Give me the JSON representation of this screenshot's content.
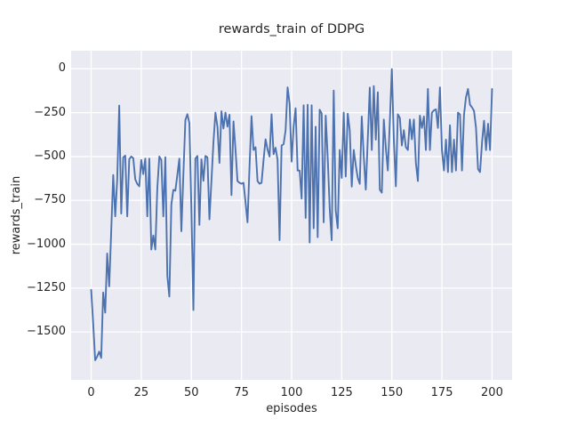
{
  "figure": {
    "title": "rewards_train of DDPG",
    "xlabel": "episodes",
    "ylabel": "rewards_train"
  },
  "chart_data": {
    "type": "line",
    "title": "rewards_train of DDPG",
    "xlabel": "episodes",
    "ylabel": "rewards_train",
    "legend": "none",
    "grid": true,
    "plot_background": "#eaeaf2",
    "figure_background": "#ffffff",
    "grid_color": "#ffffff",
    "line_color": "#4c72b0",
    "text_color": "#262626",
    "xlim": [
      -10,
      210
    ],
    "ylim": [
      -1773,
      103
    ],
    "x_ticks": [
      0,
      25,
      50,
      75,
      100,
      125,
      150,
      175,
      200
    ],
    "x_tick_labels": [
      "0",
      "25",
      "50",
      "75",
      "100",
      "125",
      "150",
      "175",
      "200"
    ],
    "y_ticks": [
      0,
      -250,
      -500,
      -750,
      -1000,
      -1250,
      -1500
    ],
    "y_tick_labels": [
      "0",
      "−250",
      "−500",
      "−750",
      "−1000",
      "−1250",
      "−1500"
    ],
    "x_start": 0,
    "x_step": 1,
    "series": [
      {
        "name": "rewards_train",
        "values": [
          -1260,
          -1450,
          -1661,
          -1640,
          -1612,
          -1648,
          -1275,
          -1390,
          -1053,
          -1240,
          -926,
          -605,
          -841,
          -630,
          -210,
          -825,
          -505,
          -495,
          -841,
          -515,
          -500,
          -510,
          -630,
          -656,
          -670,
          -520,
          -600,
          -512,
          -841,
          -512,
          -1030,
          -950,
          -1030,
          -680,
          -500,
          -520,
          -841,
          -504,
          -1180,
          -1298,
          -774,
          -690,
          -695,
          -605,
          -512,
          -926,
          -605,
          -292,
          -259,
          -310,
          -800,
          -1375,
          -512,
          -497,
          -890,
          -516,
          -639,
          -497,
          -505,
          -858,
          -640,
          -419,
          -250,
          -330,
          -537,
          -242,
          -340,
          -250,
          -330,
          -262,
          -720,
          -300,
          -460,
          -640,
          -650,
          -655,
          -650,
          -760,
          -875,
          -560,
          -270,
          -463,
          -447,
          -640,
          -655,
          -650,
          -520,
          -402,
          -460,
          -500,
          -259,
          -487,
          -450,
          -520,
          -977,
          -437,
          -430,
          -350,
          -106,
          -200,
          -529,
          -330,
          -225,
          -580,
          -580,
          -740,
          -208,
          -850,
          -205,
          -990,
          -208,
          -909,
          -330,
          -960,
          -233,
          -255,
          -875,
          -267,
          -503,
          -796,
          -977,
          -124,
          -808,
          -909,
          -463,
          -622,
          -250,
          -614,
          -256,
          -350,
          -672,
          -463,
          -550,
          -622,
          -656,
          -272,
          -500,
          -689,
          -400,
          -107,
          -463,
          -98,
          -404,
          -134,
          -689,
          -706,
          -289,
          -450,
          -580,
          -300,
          -2,
          -404,
          -670,
          -259,
          -280,
          -437,
          -350,
          -447,
          -463,
          -289,
          -402,
          -289,
          -537,
          -640,
          -267,
          -337,
          -272,
          -463,
          -115,
          -463,
          -250,
          -237,
          -231,
          -337,
          -106,
          -463,
          -580,
          -404,
          -589,
          -322,
          -589,
          -404,
          -580,
          -250,
          -260,
          -580,
          -263,
          -161,
          -115,
          -205,
          -220,
          -240,
          -337,
          -571,
          -589,
          -420,
          -296,
          -463,
          -313,
          -463,
          -115
        ]
      }
    ]
  }
}
